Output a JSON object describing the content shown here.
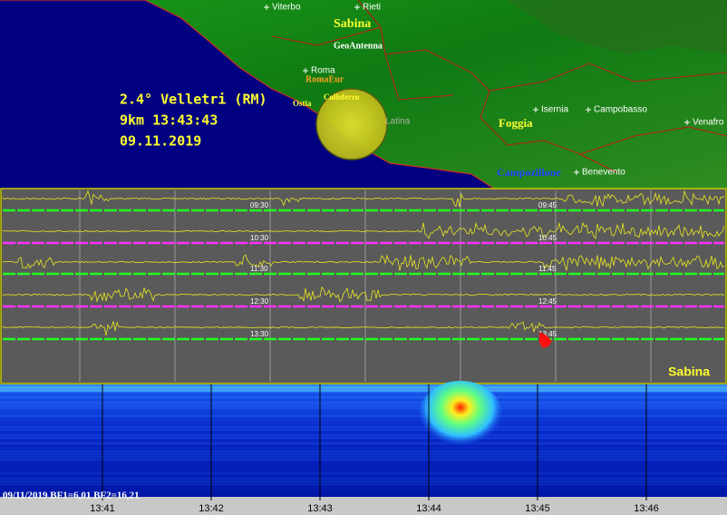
{
  "event": {
    "line1": "2.4° Velletri (RM)",
    "line2": "9km 13:43:43",
    "line3": "09.11.2019"
  },
  "map": {
    "labels": [
      "Viterbo",
      "Rieti",
      "Sabina",
      "GeoAntenna",
      "Roma",
      "RomaEur",
      "Colleferro",
      "Ostia",
      "Latina",
      "Isernia",
      "Campobasso",
      "Venafro",
      "Foggia",
      "Campozillone",
      "Benevento"
    ]
  },
  "seismogram": {
    "time_labels": [
      "09:30",
      "09:45",
      "10:30",
      "10:45",
      "11:30",
      "11:45",
      "12:30",
      "12:45",
      "13:30",
      "13:45"
    ],
    "station": "Sabina"
  },
  "spectrogram": {
    "info": "09/11/2019 BF1=6,01 BF2=16,21",
    "time_axis": [
      "13:41",
      "13:42",
      "13:43",
      "13:44",
      "13:45",
      "13:46"
    ]
  }
}
